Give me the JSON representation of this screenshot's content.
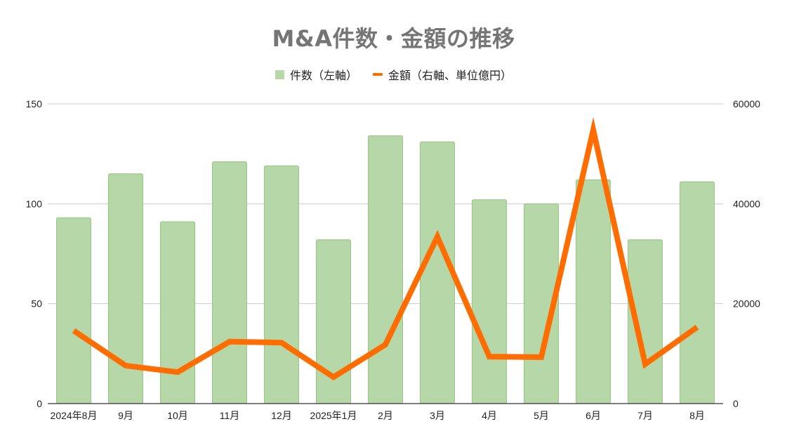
{
  "title": "M&A件数・金額の推移",
  "legend": {
    "bar_label": "件数（左軸）",
    "line_label": "金額（右軸、単位億円）"
  },
  "colors": {
    "bar_fill": "#b6d7a8",
    "bar_stroke": "#93c47d",
    "line": "#ff6d01",
    "grid": "#cccccc",
    "axis": "#333333"
  },
  "chart_data": {
    "type": "bar+line",
    "title": "M&A件数・金額の推移",
    "categories": [
      "2024年8月",
      "9月",
      "10月",
      "11月",
      "12月",
      "2025年1月",
      "2月",
      "3月",
      "4月",
      "5月",
      "6月",
      "7月",
      "8月"
    ],
    "series": [
      {
        "name": "件数（左軸）",
        "type": "bar",
        "axis": "left",
        "values": [
          93,
          115,
          91,
          121,
          119,
          82,
          134,
          131,
          102,
          100,
          112,
          82,
          111
        ]
      },
      {
        "name": "金額（右軸、単位億円）",
        "type": "line",
        "axis": "right",
        "values": [
          14600,
          7600,
          6300,
          12400,
          12200,
          5300,
          11800,
          33400,
          9400,
          9300,
          54800,
          7900,
          15300
        ]
      }
    ],
    "left_axis": {
      "ylim": [
        0,
        150
      ],
      "ticks": [
        0,
        50,
        100,
        150
      ]
    },
    "right_axis": {
      "ylim": [
        0,
        60000
      ],
      "ticks": [
        0,
        20000,
        40000,
        60000
      ]
    },
    "grid": true,
    "legend_position": "top"
  }
}
